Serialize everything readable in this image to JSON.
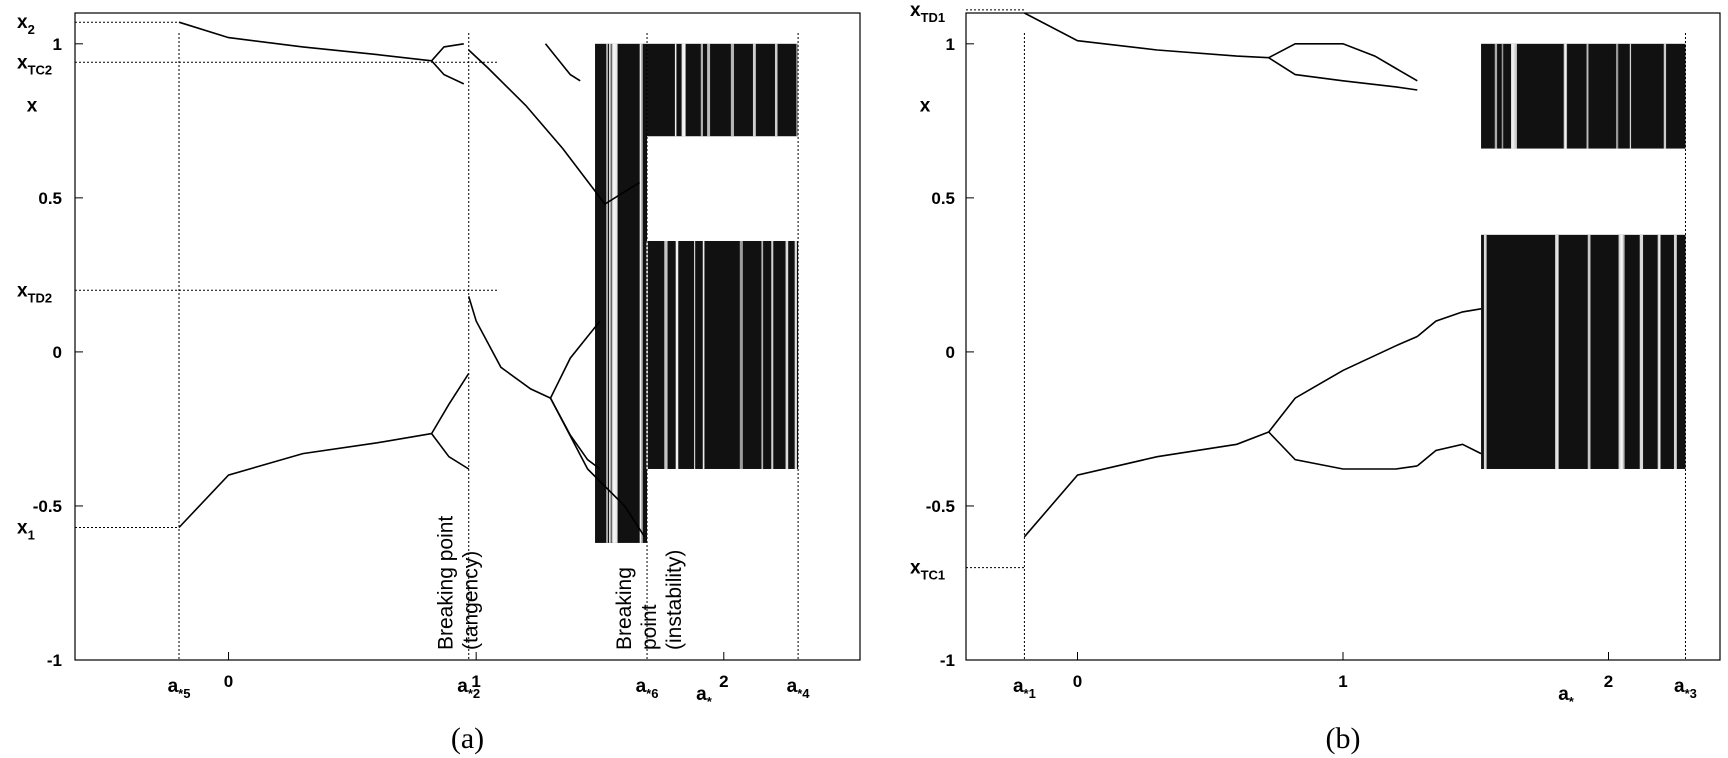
{
  "chart_data": [
    {
      "type": "scatter",
      "panel": "a",
      "caption": "(a)",
      "ylabel": "x",
      "xlim": [
        -0.62,
        2.55
      ],
      "ylim": [
        -1,
        1.1
      ],
      "xticks": [
        {
          "value": 0,
          "label": "0"
        },
        {
          "value": 1,
          "label": "1"
        },
        {
          "value": 2,
          "label": "2"
        }
      ],
      "yticks": [
        {
          "value": 1,
          "label": "1"
        },
        {
          "value": 0.5,
          "label": "0.5"
        },
        {
          "value": 0,
          "label": "0"
        },
        {
          "value": -0.5,
          "label": "-0.5"
        },
        {
          "value": -1,
          "label": "-1"
        }
      ],
      "special_x": [
        {
          "value": -0.2,
          "base": "a",
          "sub": "*5"
        },
        {
          "value": 0.97,
          "base": "a",
          "sub": "*2"
        },
        {
          "value": 1.69,
          "base": "a",
          "sub": "*6"
        },
        {
          "value": 1.92,
          "base": "a",
          "sub": "*"
        },
        {
          "value": 2.3,
          "base": "a",
          "sub": "*4"
        }
      ],
      "special_y": [
        {
          "value": 1.07,
          "base": "x",
          "sub": "2"
        },
        {
          "value": 0.94,
          "base": "x",
          "sub": "TC2"
        },
        {
          "value": 0.2,
          "base": "x",
          "sub": "TD2"
        },
        {
          "value": -0.57,
          "base": "x",
          "sub": "1"
        }
      ],
      "annotations": [
        {
          "lines": [
            "Breaking point",
            "(tangency)"
          ],
          "x": 0.97
        },
        {
          "lines": [
            "Breaking",
            "point",
            "(instability)"
          ],
          "x": 1.69
        }
      ],
      "series": [
        {
          "points": [
            [
              -0.2,
              1.07
            ],
            [
              0.0,
              1.02
            ],
            [
              0.3,
              0.99
            ],
            [
              0.6,
              0.965
            ],
            [
              0.82,
              0.945
            ]
          ]
        },
        {
          "points": [
            [
              0.82,
              0.945
            ],
            [
              0.87,
              0.99
            ],
            [
              0.95,
              1.0
            ]
          ]
        },
        {
          "points": [
            [
              0.82,
              0.945
            ],
            [
              0.87,
              0.9
            ],
            [
              0.95,
              0.87
            ]
          ]
        },
        {
          "points": [
            [
              -0.2,
              -0.57
            ],
            [
              0.0,
              -0.4
            ],
            [
              0.3,
              -0.33
            ],
            [
              0.6,
              -0.295
            ],
            [
              0.82,
              -0.265
            ]
          ]
        },
        {
          "points": [
            [
              0.82,
              -0.265
            ],
            [
              0.89,
              -0.17
            ],
            [
              0.97,
              -0.07
            ]
          ]
        },
        {
          "points": [
            [
              0.82,
              -0.265
            ],
            [
              0.89,
              -0.34
            ],
            [
              0.97,
              -0.38
            ]
          ]
        },
        {
          "points": [
            [
              0.97,
              0.98
            ],
            [
              1.05,
              0.92
            ],
            [
              1.2,
              0.8
            ],
            [
              1.35,
              0.66
            ],
            [
              1.52,
              0.48
            ],
            [
              1.66,
              0.55
            ]
          ]
        },
        {
          "points": [
            [
              0.97,
              0.18
            ],
            [
              1.0,
              0.1
            ],
            [
              1.1,
              -0.05
            ],
            [
              1.22,
              -0.12
            ],
            [
              1.3,
              -0.15
            ]
          ]
        },
        {
          "points": [
            [
              1.3,
              -0.15
            ],
            [
              1.38,
              -0.02
            ],
            [
              1.45,
              0.05
            ],
            [
              1.5,
              0.1
            ]
          ]
        },
        {
          "points": [
            [
              1.3,
              -0.15
            ],
            [
              1.38,
              -0.27
            ],
            [
              1.45,
              -0.35
            ],
            [
              1.5,
              -0.38
            ]
          ]
        },
        {
          "points": [
            [
              1.28,
              1.0
            ],
            [
              1.32,
              0.96
            ],
            [
              1.38,
              0.9
            ],
            [
              1.42,
              0.88
            ]
          ]
        },
        {
          "points": [
            [
              1.3,
              -0.15
            ],
            [
              1.45,
              -0.38
            ],
            [
              1.6,
              -0.5
            ],
            [
              1.68,
              -0.6
            ]
          ]
        }
      ],
      "chaotic_bands": [
        {
          "x": [
            1.48,
            1.69
          ],
          "y": [
            -0.62,
            1.0
          ]
        },
        {
          "x": [
            1.69,
            2.3
          ],
          "y": [
            0.7,
            1.0
          ]
        },
        {
          "x": [
            1.69,
            2.3
          ],
          "y": [
            -0.38,
            0.36
          ]
        }
      ]
    },
    {
      "type": "scatter",
      "panel": "b",
      "caption": "(b)",
      "ylabel": "x",
      "xlim": [
        -0.42,
        2.42
      ],
      "ylim": [
        -1,
        1.1
      ],
      "xticks": [
        {
          "value": 0,
          "label": "0"
        },
        {
          "value": 1,
          "label": "1"
        },
        {
          "value": 2,
          "label": "2"
        }
      ],
      "yticks": [
        {
          "value": 1,
          "label": "1"
        },
        {
          "value": 0.5,
          "label": "0.5"
        },
        {
          "value": 0,
          "label": "0"
        },
        {
          "value": -0.5,
          "label": "-0.5"
        },
        {
          "value": -1,
          "label": "-1"
        }
      ],
      "special_x": [
        {
          "value": -0.2,
          "base": "a",
          "sub": "*1"
        },
        {
          "value": 1.84,
          "base": "a",
          "sub": "*"
        },
        {
          "value": 2.29,
          "base": "a",
          "sub": "*3"
        }
      ],
      "special_y": [
        {
          "value": 1.11,
          "base": "x",
          "sub": "TD1"
        },
        {
          "value": -0.7,
          "base": "x",
          "sub": "TC1"
        }
      ],
      "series": [
        {
          "points": [
            [
              -0.2,
              1.1
            ],
            [
              0.0,
              1.01
            ],
            [
              0.3,
              0.98
            ],
            [
              0.6,
              0.96
            ],
            [
              0.72,
              0.955
            ]
          ]
        },
        {
          "points": [
            [
              0.72,
              0.955
            ],
            [
              0.82,
              1.0
            ],
            [
              1.0,
              1.0
            ],
            [
              1.12,
              0.96
            ],
            [
              1.2,
              0.92
            ],
            [
              1.28,
              0.88
            ]
          ]
        },
        {
          "points": [
            [
              0.72,
              0.955
            ],
            [
              0.82,
              0.9
            ],
            [
              1.0,
              0.88
            ],
            [
              1.2,
              0.86
            ],
            [
              1.28,
              0.85
            ]
          ]
        },
        {
          "points": [
            [
              -0.2,
              -0.6
            ],
            [
              0.0,
              -0.4
            ],
            [
              0.3,
              -0.34
            ],
            [
              0.6,
              -0.3
            ],
            [
              0.72,
              -0.26
            ]
          ]
        },
        {
          "points": [
            [
              0.72,
              -0.26
            ],
            [
              0.82,
              -0.15
            ],
            [
              1.0,
              -0.06
            ],
            [
              1.2,
              0.02
            ],
            [
              1.28,
              0.05
            ]
          ]
        },
        {
          "points": [
            [
              0.72,
              -0.26
            ],
            [
              0.82,
              -0.35
            ],
            [
              1.0,
              -0.38
            ],
            [
              1.2,
              -0.38
            ],
            [
              1.28,
              -0.37
            ]
          ]
        },
        {
          "points": [
            [
              1.28,
              0.05
            ],
            [
              1.35,
              0.1
            ],
            [
              1.45,
              0.13
            ],
            [
              1.52,
              0.14
            ]
          ]
        },
        {
          "points": [
            [
              1.28,
              -0.37
            ],
            [
              1.35,
              -0.32
            ],
            [
              1.45,
              -0.3
            ],
            [
              1.52,
              -0.33
            ]
          ]
        }
      ],
      "chaotic_bands": [
        {
          "x": [
            1.52,
            2.29
          ],
          "y": [
            0.66,
            1.0
          ]
        },
        {
          "x": [
            1.52,
            2.29
          ],
          "y": [
            -0.38,
            0.38
          ]
        }
      ]
    }
  ]
}
